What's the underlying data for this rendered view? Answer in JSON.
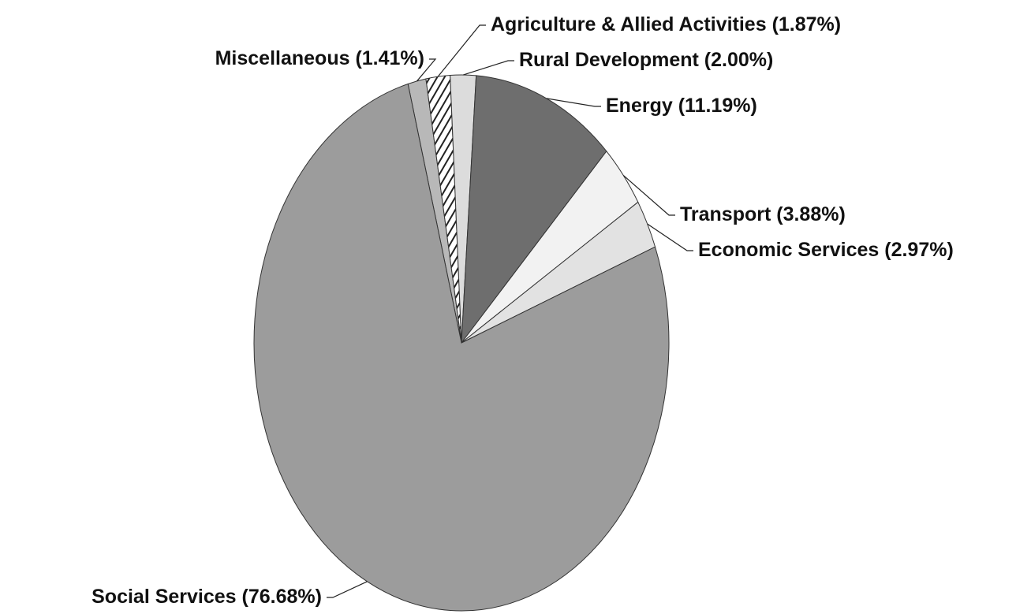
{
  "chart_data": {
    "type": "pie",
    "categories": [
      "Miscellaneous",
      "Agriculture & Allied Activities",
      "Rural Development",
      "Energy",
      "Transport",
      "Economic Services",
      "Social Services"
    ],
    "values": [
      1.41,
      1.87,
      2.0,
      11.19,
      3.88,
      2.97,
      76.68
    ],
    "value_labels": [
      "(1.41%)",
      "(1.87%)",
      "(2.00%)",
      "(11.19%)",
      "(3.88%)",
      "(2.97%)",
      "(76.68%)"
    ],
    "colors": [
      "#b8b8b8",
      "#4a4a4a",
      "#dcdcdc",
      "#6e6e6e",
      "#f2f2f2",
      "#e2e2e2",
      "#9c9c9c"
    ]
  }
}
